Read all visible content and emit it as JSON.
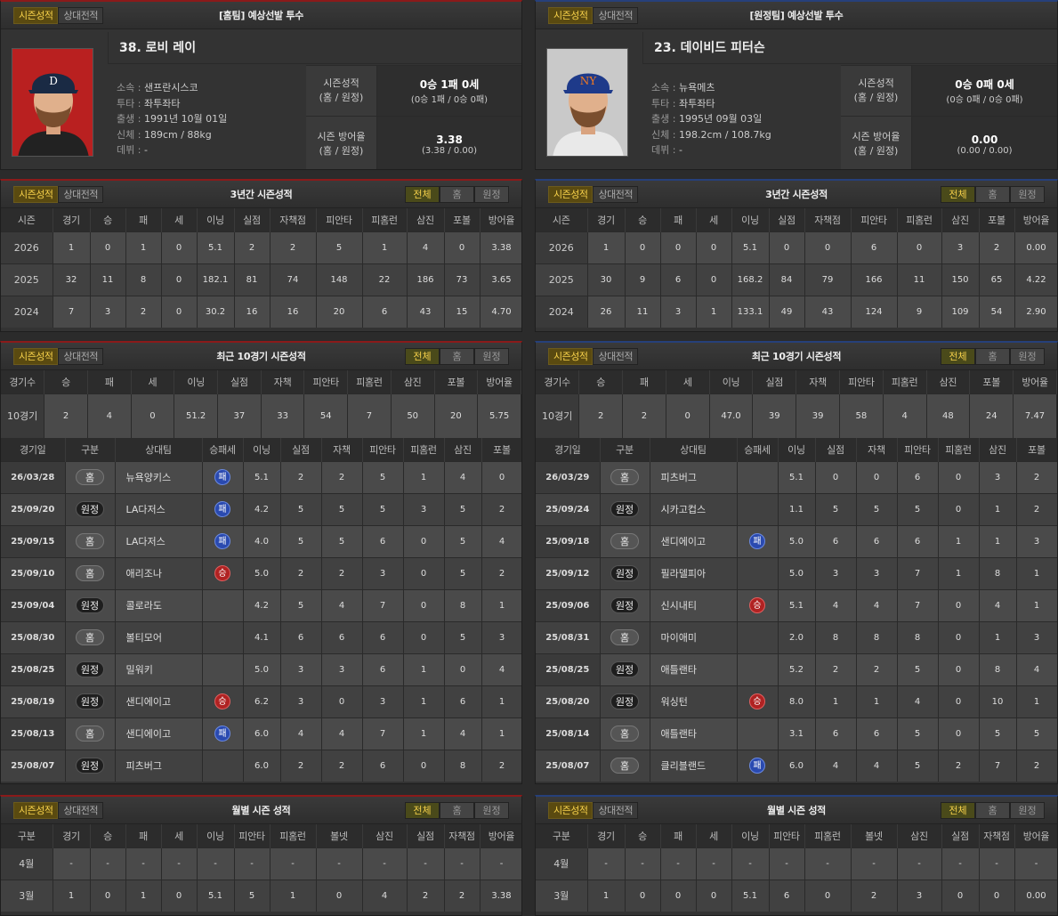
{
  "colors": {
    "accent": "#f5d04a",
    "home": "#8b1a1a",
    "away": "#26407a",
    "win": "#b02222",
    "loss": "#2a4ab0"
  },
  "tabs": {
    "season": "시즌성적",
    "vs": "상대전적"
  },
  "filters": {
    "all": "전체",
    "home": "홈",
    "away": "원정"
  },
  "titles": {
    "three_year": "3년간 시즌성적",
    "recent": "최근 10경기 시즌성적",
    "monthly": "월별 시즌 성적"
  },
  "headers": {
    "season": [
      "시즌",
      "경기",
      "승",
      "패",
      "세",
      "이닝",
      "실점",
      "자책점",
      "피안타",
      "피홈런",
      "삼진",
      "포볼",
      "방어율"
    ],
    "recent_sum": [
      "경기수",
      "승",
      "패",
      "세",
      "이닝",
      "실점",
      "자책",
      "피안타",
      "피홈런",
      "삼진",
      "포볼",
      "방어율"
    ],
    "games": [
      "경기일",
      "구분",
      "상대팀",
      "승패세",
      "이닝",
      "실점",
      "자책",
      "피안타",
      "피홈런",
      "삼진",
      "포볼"
    ],
    "monthly": [
      "구분",
      "경기",
      "승",
      "패",
      "세",
      "이닝",
      "피안타",
      "피홈런",
      "볼넷",
      "삼진",
      "실점",
      "자책점",
      "방어율"
    ]
  },
  "labels": {
    "birth": "출생",
    "born": "출생",
    "team": "소속",
    "throw": "투타",
    "body": "신체",
    "debut": "데뷔",
    "season_record": "시즌성적",
    "season_era": "시즌 방어율",
    "split": "(홈 / 원정)"
  },
  "home": {
    "header": "[홈팀] 예상선발 투수",
    "name": "38. 로비 레이",
    "team": "샌프란시스코",
    "throws": "좌투좌타",
    "birth": "1991년 10월 01일",
    "body": "189cm / 88kg",
    "debut": "-",
    "record": "0승 1패 0세",
    "record_split": "(0승 1패 / 0승 0패)",
    "era": "3.38",
    "era_split": "(3.38 / 0.00)",
    "three_year": [
      [
        "2026",
        "1",
        "0",
        "1",
        "0",
        "5.1",
        "2",
        "2",
        "5",
        "1",
        "4",
        "0",
        "3.38"
      ],
      [
        "2025",
        "32",
        "11",
        "8",
        "0",
        "182.1",
        "81",
        "74",
        "148",
        "22",
        "186",
        "73",
        "3.65"
      ],
      [
        "2024",
        "7",
        "3",
        "2",
        "0",
        "30.2",
        "16",
        "16",
        "20",
        "6",
        "43",
        "15",
        "4.70"
      ]
    ],
    "recent_sum": [
      "10경기",
      "2",
      "4",
      "0",
      "51.2",
      "37",
      "33",
      "54",
      "7",
      "50",
      "20",
      "5.75"
    ],
    "games": [
      {
        "date": "26/03/28",
        "loc": "홈",
        "la": "h",
        "opp": "뉴욕양키스",
        "res": "패",
        "r": "L",
        "v": [
          "5.1",
          "2",
          "2",
          "5",
          "1",
          "4",
          "0"
        ]
      },
      {
        "date": "25/09/20",
        "loc": "원정",
        "la": "a",
        "opp": "LA다저스",
        "res": "패",
        "r": "L",
        "v": [
          "4.2",
          "5",
          "5",
          "5",
          "3",
          "5",
          "2"
        ]
      },
      {
        "date": "25/09/15",
        "loc": "홈",
        "la": "h",
        "opp": "LA다저스",
        "res": "패",
        "r": "L",
        "v": [
          "4.0",
          "5",
          "5",
          "6",
          "0",
          "5",
          "4"
        ]
      },
      {
        "date": "25/09/10",
        "loc": "홈",
        "la": "h",
        "opp": "애리조나",
        "res": "승",
        "r": "W",
        "v": [
          "5.0",
          "2",
          "2",
          "3",
          "0",
          "5",
          "2"
        ]
      },
      {
        "date": "25/09/04",
        "loc": "원정",
        "la": "a",
        "opp": "콜로라도",
        "res": "",
        "r": "",
        "v": [
          "4.2",
          "5",
          "4",
          "7",
          "0",
          "8",
          "1"
        ]
      },
      {
        "date": "25/08/30",
        "loc": "홈",
        "la": "h",
        "opp": "볼티모어",
        "res": "",
        "r": "",
        "v": [
          "4.1",
          "6",
          "6",
          "6",
          "0",
          "5",
          "3"
        ]
      },
      {
        "date": "25/08/25",
        "loc": "원정",
        "la": "a",
        "opp": "밀워키",
        "res": "",
        "r": "",
        "v": [
          "5.0",
          "3",
          "3",
          "6",
          "1",
          "0",
          "4"
        ]
      },
      {
        "date": "25/08/19",
        "loc": "원정",
        "la": "a",
        "opp": "샌디에이고",
        "res": "승",
        "r": "W",
        "v": [
          "6.2",
          "3",
          "0",
          "3",
          "1",
          "6",
          "1"
        ]
      },
      {
        "date": "25/08/13",
        "loc": "홈",
        "la": "h",
        "opp": "샌디에이고",
        "res": "패",
        "r": "L",
        "v": [
          "6.0",
          "4",
          "4",
          "7",
          "1",
          "4",
          "1"
        ]
      },
      {
        "date": "25/08/07",
        "loc": "원정",
        "la": "a",
        "opp": "피츠버그",
        "res": "",
        "r": "",
        "v": [
          "6.0",
          "2",
          "2",
          "6",
          "0",
          "8",
          "2"
        ]
      }
    ],
    "monthly": [
      [
        "4월",
        "-",
        "-",
        "-",
        "-",
        "-",
        "-",
        "-",
        "-",
        "-",
        "-",
        "-",
        "-"
      ],
      [
        "3월",
        "1",
        "0",
        "1",
        "0",
        "5.1",
        "5",
        "1",
        "0",
        "4",
        "2",
        "2",
        "3.38"
      ]
    ]
  },
  "away": {
    "header": "[원정팀] 예상선발 투수",
    "name": "23. 데이비드 피터슨",
    "team": "뉴욕메츠",
    "throws": "좌투좌타",
    "birth": "1995년 09월 03일",
    "body": "198.2cm / 108.7kg",
    "debut": "-",
    "record": "0승 0패 0세",
    "record_split": "(0승 0패 / 0승 0패)",
    "era": "0.00",
    "era_split": "(0.00 / 0.00)",
    "three_year": [
      [
        "2026",
        "1",
        "0",
        "0",
        "0",
        "5.1",
        "0",
        "0",
        "6",
        "0",
        "3",
        "2",
        "0.00"
      ],
      [
        "2025",
        "30",
        "9",
        "6",
        "0",
        "168.2",
        "84",
        "79",
        "166",
        "11",
        "150",
        "65",
        "4.22"
      ],
      [
        "2024",
        "26",
        "11",
        "3",
        "1",
        "133.1",
        "49",
        "43",
        "124",
        "9",
        "109",
        "54",
        "2.90"
      ]
    ],
    "recent_sum": [
      "10경기",
      "2",
      "2",
      "0",
      "47.0",
      "39",
      "39",
      "58",
      "4",
      "48",
      "24",
      "7.47"
    ],
    "games": [
      {
        "date": "26/03/29",
        "loc": "홈",
        "la": "h",
        "opp": "피츠버그",
        "res": "",
        "r": "",
        "v": [
          "5.1",
          "0",
          "0",
          "6",
          "0",
          "3",
          "2"
        ]
      },
      {
        "date": "25/09/24",
        "loc": "원정",
        "la": "a",
        "opp": "시카고컵스",
        "res": "",
        "r": "",
        "v": [
          "1.1",
          "5",
          "5",
          "5",
          "0",
          "1",
          "2"
        ]
      },
      {
        "date": "25/09/18",
        "loc": "홈",
        "la": "h",
        "opp": "샌디에이고",
        "res": "패",
        "r": "L",
        "v": [
          "5.0",
          "6",
          "6",
          "6",
          "1",
          "1",
          "3"
        ]
      },
      {
        "date": "25/09/12",
        "loc": "원정",
        "la": "a",
        "opp": "필라델피아",
        "res": "",
        "r": "",
        "v": [
          "5.0",
          "3",
          "3",
          "7",
          "1",
          "8",
          "1"
        ]
      },
      {
        "date": "25/09/06",
        "loc": "원정",
        "la": "a",
        "opp": "신시내티",
        "res": "승",
        "r": "W",
        "v": [
          "5.1",
          "4",
          "4",
          "7",
          "0",
          "4",
          "1"
        ]
      },
      {
        "date": "25/08/31",
        "loc": "홈",
        "la": "h",
        "opp": "마이애미",
        "res": "",
        "r": "",
        "v": [
          "2.0",
          "8",
          "8",
          "8",
          "0",
          "1",
          "3"
        ]
      },
      {
        "date": "25/08/25",
        "loc": "원정",
        "la": "a",
        "opp": "애틀랜타",
        "res": "",
        "r": "",
        "v": [
          "5.2",
          "2",
          "2",
          "5",
          "0",
          "8",
          "4"
        ]
      },
      {
        "date": "25/08/20",
        "loc": "원정",
        "la": "a",
        "opp": "워싱턴",
        "res": "승",
        "r": "W",
        "v": [
          "8.0",
          "1",
          "1",
          "4",
          "0",
          "10",
          "1"
        ]
      },
      {
        "date": "25/08/14",
        "loc": "홈",
        "la": "h",
        "opp": "애틀랜타",
        "res": "",
        "r": "",
        "v": [
          "3.1",
          "6",
          "6",
          "5",
          "0",
          "5",
          "5"
        ]
      },
      {
        "date": "25/08/07",
        "loc": "홈",
        "la": "h",
        "opp": "클리블랜드",
        "res": "패",
        "r": "L",
        "v": [
          "6.0",
          "4",
          "4",
          "5",
          "2",
          "7",
          "2"
        ]
      }
    ],
    "monthly": [
      [
        "4월",
        "-",
        "-",
        "-",
        "-",
        "-",
        "-",
        "-",
        "-",
        "-",
        "-",
        "-",
        "-"
      ],
      [
        "3월",
        "1",
        "0",
        "0",
        "0",
        "5.1",
        "6",
        "0",
        "2",
        "3",
        "0",
        "0",
        "0.00"
      ]
    ]
  }
}
